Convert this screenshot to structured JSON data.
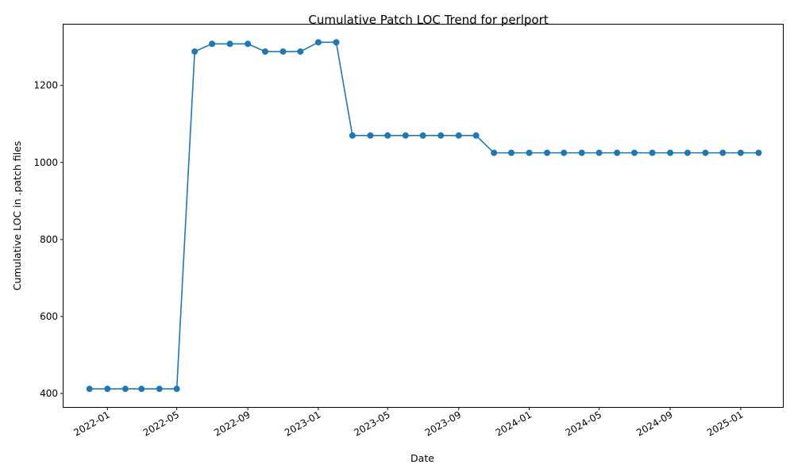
{
  "chart_data": {
    "type": "line",
    "title": "Cumulative Patch LOC Trend for perlport",
    "xlabel": "Date",
    "ylabel": "Cumulative LOC in .patch files",
    "x_start": "2021-12",
    "x_step": "1 month",
    "xlim": [
      "2021-10-17",
      "2025-03-15"
    ],
    "ylim": [
      365,
      1358
    ],
    "y_ticks": [
      400,
      600,
      800,
      1000,
      1200
    ],
    "x_ticks": [
      "2022-01",
      "2022-05",
      "2022-09",
      "2023-01",
      "2023-05",
      "2023-09",
      "2024-01",
      "2024-05",
      "2024-09",
      "2025-01"
    ],
    "series": [
      {
        "name": "perlport",
        "color": "#1f77b4",
        "marker": "circle",
        "x": [
          "2021-12",
          "2022-01",
          "2022-02",
          "2022-03",
          "2022-04",
          "2022-05",
          "2022-06",
          "2022-07",
          "2022-08",
          "2022-09",
          "2022-10",
          "2022-11",
          "2022-12",
          "2023-01",
          "2023-02",
          "2023-03",
          "2023-04",
          "2023-05",
          "2023-06",
          "2023-07",
          "2023-08",
          "2023-09",
          "2023-10",
          "2023-11",
          "2023-12",
          "2024-01",
          "2024-02",
          "2024-03",
          "2024-04",
          "2024-05",
          "2024-06",
          "2024-07",
          "2024-08",
          "2024-09",
          "2024-10",
          "2024-11",
          "2024-12",
          "2025-01",
          "2025-02"
        ],
        "values": [
          412,
          412,
          412,
          412,
          412,
          412,
          1288,
          1308,
          1308,
          1308,
          1288,
          1288,
          1288,
          1312,
          1312,
          1070,
          1070,
          1070,
          1070,
          1070,
          1070,
          1070,
          1070,
          1025,
          1025,
          1025,
          1025,
          1025,
          1025,
          1025,
          1025,
          1025,
          1025,
          1025,
          1025,
          1025,
          1025,
          1025,
          1025
        ]
      }
    ],
    "grid": false,
    "legend": "none"
  }
}
